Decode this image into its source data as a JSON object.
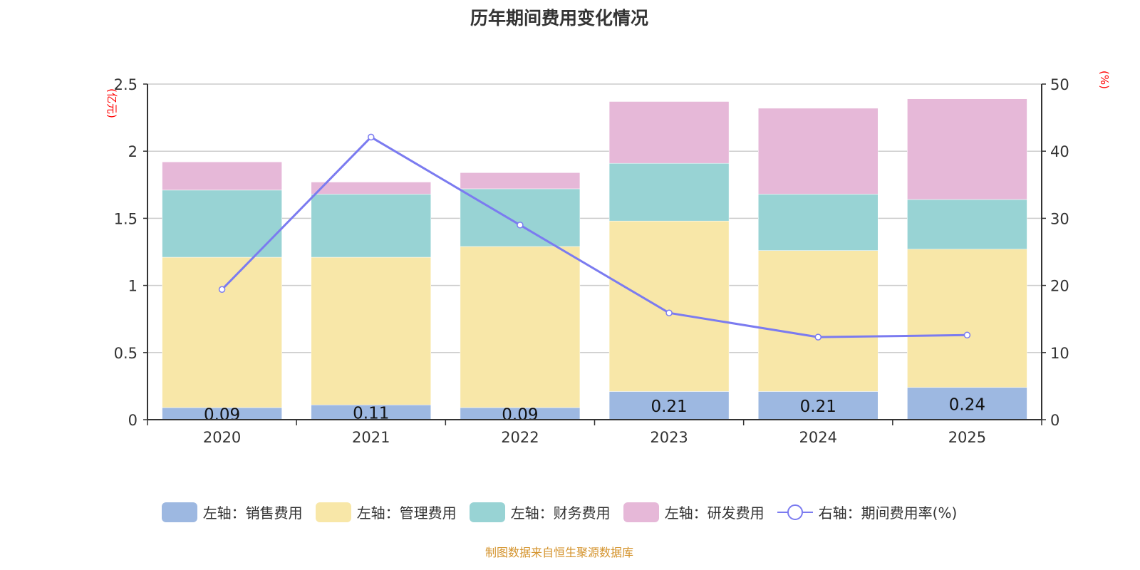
{
  "title": "历年期间费用变化情况",
  "footer": "制图数据来自恒生聚源数据库",
  "chart_data": {
    "type": "bar",
    "stacked": true,
    "categories": [
      "2020",
      "2021",
      "2022",
      "2023",
      "2024",
      "2025"
    ],
    "left_axis": {
      "label": "(亿元)",
      "range": [
        0,
        2.5
      ],
      "ticks": [
        "0",
        "0.5",
        "1",
        "1.5",
        "2",
        "2.5"
      ],
      "label_color": "#ff0000"
    },
    "right_axis": {
      "label": "(%)",
      "range": [
        0,
        50
      ],
      "ticks": [
        "0",
        "10",
        "20",
        "30",
        "40",
        "50"
      ],
      "label_color": "#ff0000"
    },
    "grid": true,
    "legend_position": "bottom",
    "series": [
      {
        "name": "左轴：销售费用",
        "type": "bar",
        "color": "#9db8e1",
        "values": [
          0.09,
          0.11,
          0.09,
          0.21,
          0.21,
          0.24
        ],
        "labels": [
          "0.09",
          "0.11",
          "0.09",
          "0.21",
          "0.21",
          "0.24"
        ]
      },
      {
        "name": "左轴：管理费用",
        "type": "bar",
        "color": "#f8e7a8",
        "values": [
          1.12,
          1.1,
          1.2,
          1.27,
          1.05,
          1.03
        ]
      },
      {
        "name": "左轴：财务费用",
        "type": "bar",
        "color": "#98d3d4",
        "values": [
          0.5,
          0.47,
          0.43,
          0.43,
          0.42,
          0.37
        ]
      },
      {
        "name": "左轴：研发费用",
        "type": "bar",
        "color": "#e6b8d8",
        "values": [
          0.21,
          0.09,
          0.12,
          0.46,
          0.64,
          0.75
        ]
      },
      {
        "name": "右轴：期间费用率(%)",
        "type": "line",
        "axis": "right",
        "color": "#7b7bf0",
        "values": [
          19.4,
          42.1,
          29.0,
          15.9,
          12.3,
          12.6
        ]
      }
    ]
  }
}
